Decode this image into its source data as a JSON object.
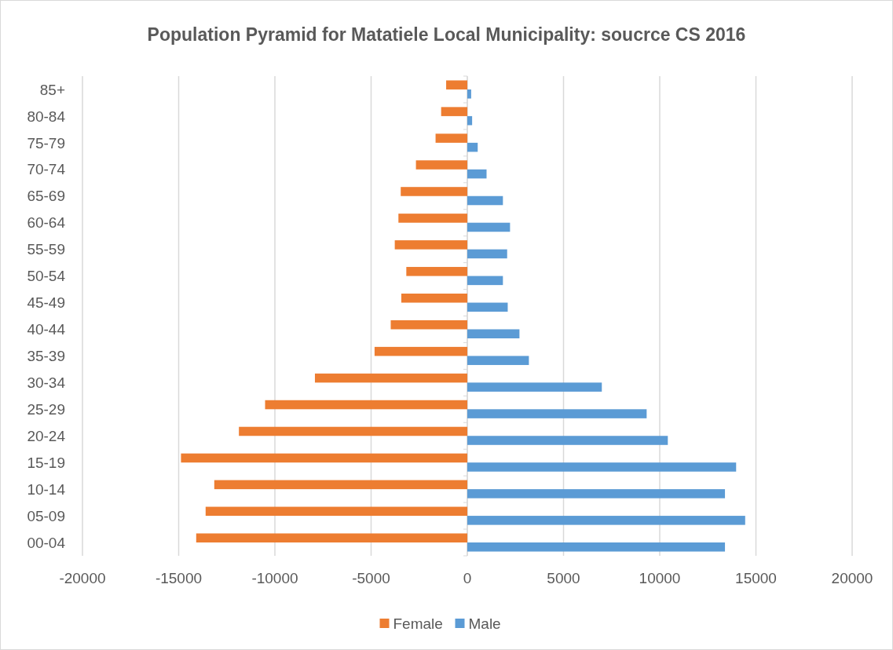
{
  "chart_data": {
    "type": "bar",
    "orientation": "horizontal",
    "title": "Population Pyramid for Matatiele Local Municipality: soucrce CS 2016",
    "categories": [
      "85+",
      "80-84",
      "75-79",
      "70-74",
      "65-69",
      "60-64",
      "55-59",
      "50-54",
      "45-49",
      "40-44",
      "35-39",
      "30-34",
      "25-29",
      "20-24",
      "15-19",
      "10-14",
      "05-09",
      "00-04"
    ],
    "series": [
      {
        "name": "Female",
        "color": "#ed7d31",
        "values": [
          -1100,
          -1360,
          -1650,
          -2670,
          -3460,
          -3580,
          -3770,
          -3170,
          -3430,
          -3980,
          -4820,
          -7920,
          -10510,
          -11870,
          -14880,
          -13150,
          -13600,
          -14090
        ]
      },
      {
        "name": "Male",
        "color": "#5b9bd5",
        "values": [
          200,
          250,
          540,
          1000,
          1850,
          2220,
          2070,
          1850,
          2100,
          2710,
          3200,
          6990,
          9320,
          10420,
          13970,
          13390,
          14440,
          13390
        ]
      }
    ],
    "xlim": [
      -20000,
      20000
    ],
    "xticks": [
      -20000,
      -15000,
      -10000,
      -5000,
      0,
      5000,
      10000,
      15000,
      20000
    ],
    "grid": "x",
    "legend": "bottom"
  }
}
